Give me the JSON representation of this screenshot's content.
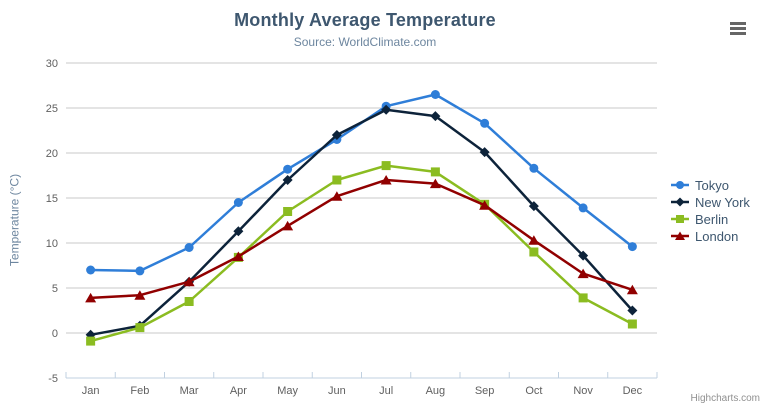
{
  "chart_data": {
    "type": "line",
    "title": "Monthly Average Temperature",
    "subtitle": "Source: WorldClimate.com",
    "xlabel": "",
    "ylabel": "Temperature (°C)",
    "ylim": [
      -5,
      30
    ],
    "yticks": [
      -5,
      0,
      5,
      10,
      15,
      20,
      25,
      30
    ],
    "grid": true,
    "legend_position": "right",
    "categories": [
      "Jan",
      "Feb",
      "Mar",
      "Apr",
      "May",
      "Jun",
      "Jul",
      "Aug",
      "Sep",
      "Oct",
      "Nov",
      "Dec"
    ],
    "series": [
      {
        "name": "Tokyo",
        "color": "#2f7ed8",
        "marker": "circle",
        "values": [
          7.0,
          6.9,
          9.5,
          14.5,
          18.2,
          21.5,
          25.2,
          26.5,
          23.3,
          18.3,
          13.9,
          9.6
        ]
      },
      {
        "name": "New York",
        "color": "#0d233a",
        "marker": "diamond",
        "values": [
          -0.2,
          0.8,
          5.7,
          11.3,
          17.0,
          22.0,
          24.8,
          24.1,
          20.1,
          14.1,
          8.6,
          2.5
        ]
      },
      {
        "name": "Berlin",
        "color": "#8bbc21",
        "marker": "square",
        "values": [
          -0.9,
          0.6,
          3.5,
          8.4,
          13.5,
          17.0,
          18.6,
          17.9,
          14.3,
          9.0,
          3.9,
          1.0
        ]
      },
      {
        "name": "London",
        "color": "#910000",
        "marker": "triangle",
        "values": [
          3.9,
          4.2,
          5.7,
          8.5,
          11.9,
          15.2,
          17.0,
          16.6,
          14.2,
          10.3,
          6.6,
          4.8
        ]
      }
    ],
    "credits": "Highcharts.com",
    "colors": {
      "title": "#3e576f",
      "subtitle": "#6d869f",
      "axis_title": "#6d869f",
      "tick_label": "#606060",
      "gridline": "#c8c8c8",
      "axis_line": "#c0d0e0",
      "legend_text": "#3e576f",
      "credits": "#909090",
      "menu_icon": "#666666"
    }
  }
}
